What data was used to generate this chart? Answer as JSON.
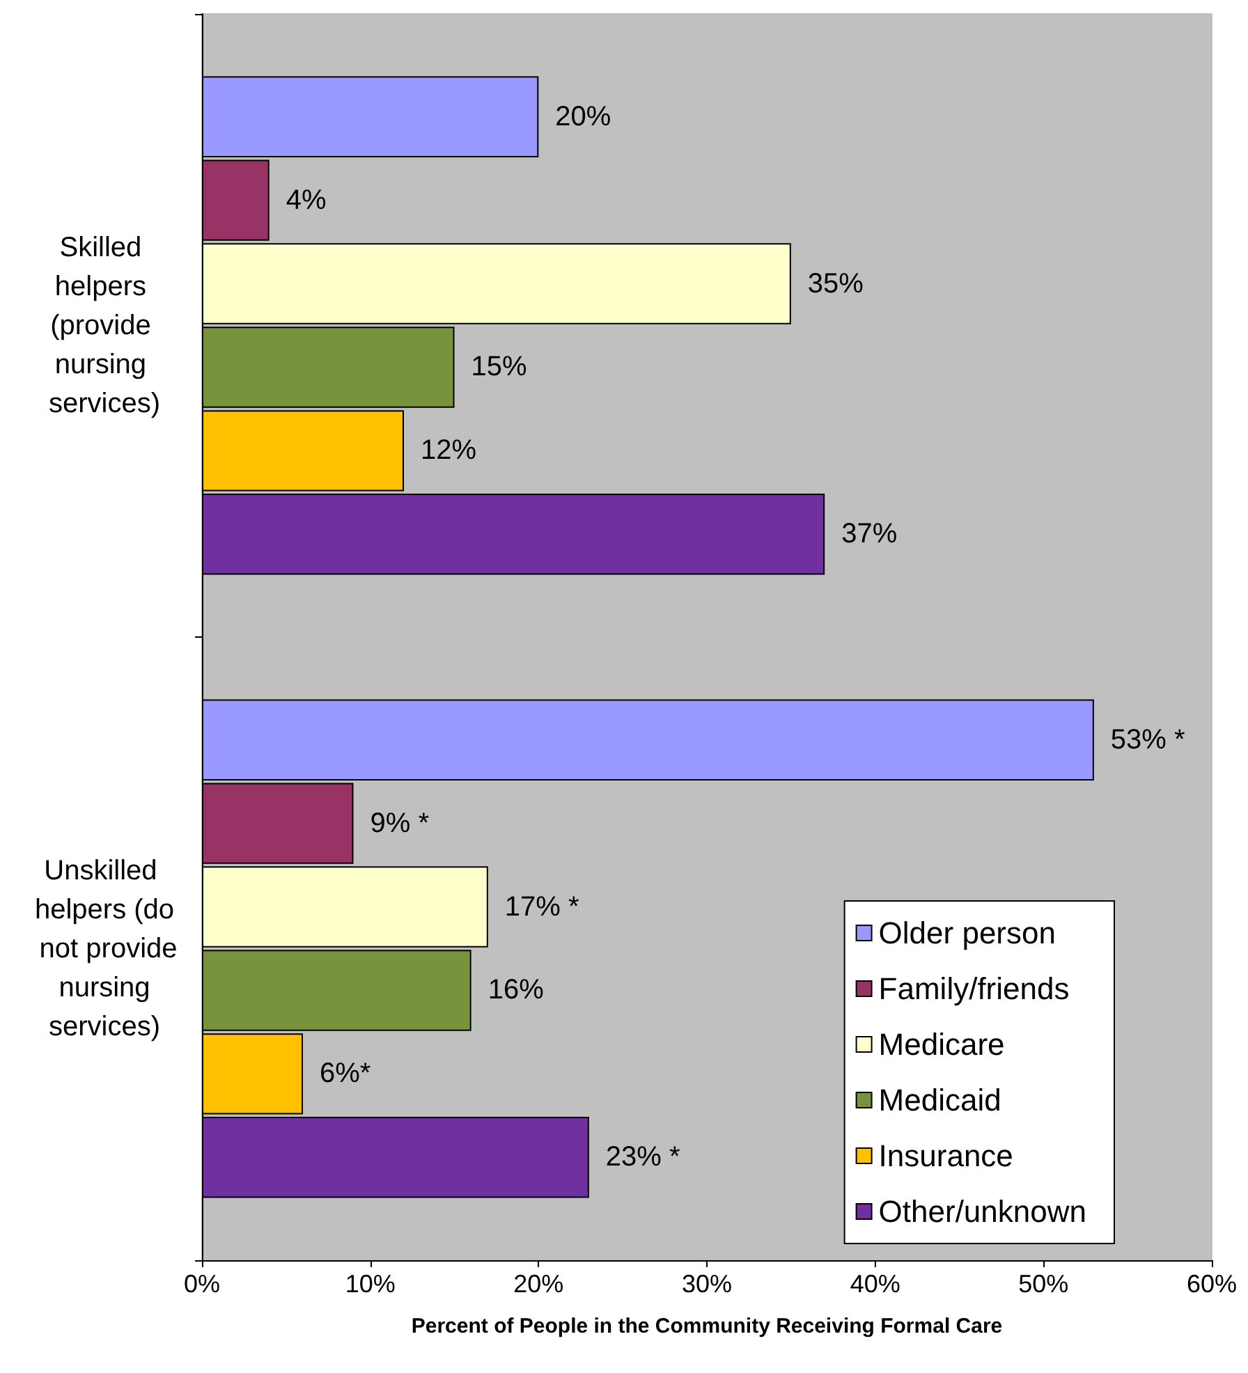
{
  "chart_data": {
    "type": "bar",
    "orientation": "horizontal",
    "xlabel": "Percent of People in the Community Receiving Formal Care",
    "categories": [
      "Skilled helpers (provide nursing services)",
      "Unskilled helpers (do not provide nursing services)"
    ],
    "series": [
      {
        "name": "Older person",
        "color": "#9999ff",
        "values": [
          20,
          53
        ],
        "value_labels": [
          "20%",
          "53% *"
        ]
      },
      {
        "name": "Family/friends",
        "color": "#993366",
        "values": [
          4,
          9
        ],
        "value_labels": [
          "4%",
          "9% *"
        ]
      },
      {
        "name": "Medicare",
        "color": "#ffffcc",
        "values": [
          35,
          17
        ],
        "value_labels": [
          "35%",
          "17% *"
        ]
      },
      {
        "name": "Medicaid",
        "color": "#77933c",
        "values": [
          15,
          16
        ],
        "value_labels": [
          "15%",
          "16%"
        ]
      },
      {
        "name": "Insurance",
        "color": "#ffc000",
        "values": [
          12,
          6
        ],
        "value_labels": [
          "12%",
          "6%*"
        ]
      },
      {
        "name": "Other/unknown",
        "color": "#7030a0",
        "values": [
          37,
          23
        ],
        "value_labels": [
          "37%",
          "23% *"
        ]
      }
    ],
    "xlim": [
      0,
      60
    ],
    "xticks": [
      {
        "value": 0,
        "label": "0%"
      },
      {
        "value": 10,
        "label": "10%"
      },
      {
        "value": 20,
        "label": "20%"
      },
      {
        "value": 30,
        "label": "30%"
      },
      {
        "value": 40,
        "label": "40%"
      },
      {
        "value": 50,
        "label": "50%"
      },
      {
        "value": 60,
        "label": "60%"
      }
    ],
    "grid": false,
    "legend": "bottom right"
  }
}
